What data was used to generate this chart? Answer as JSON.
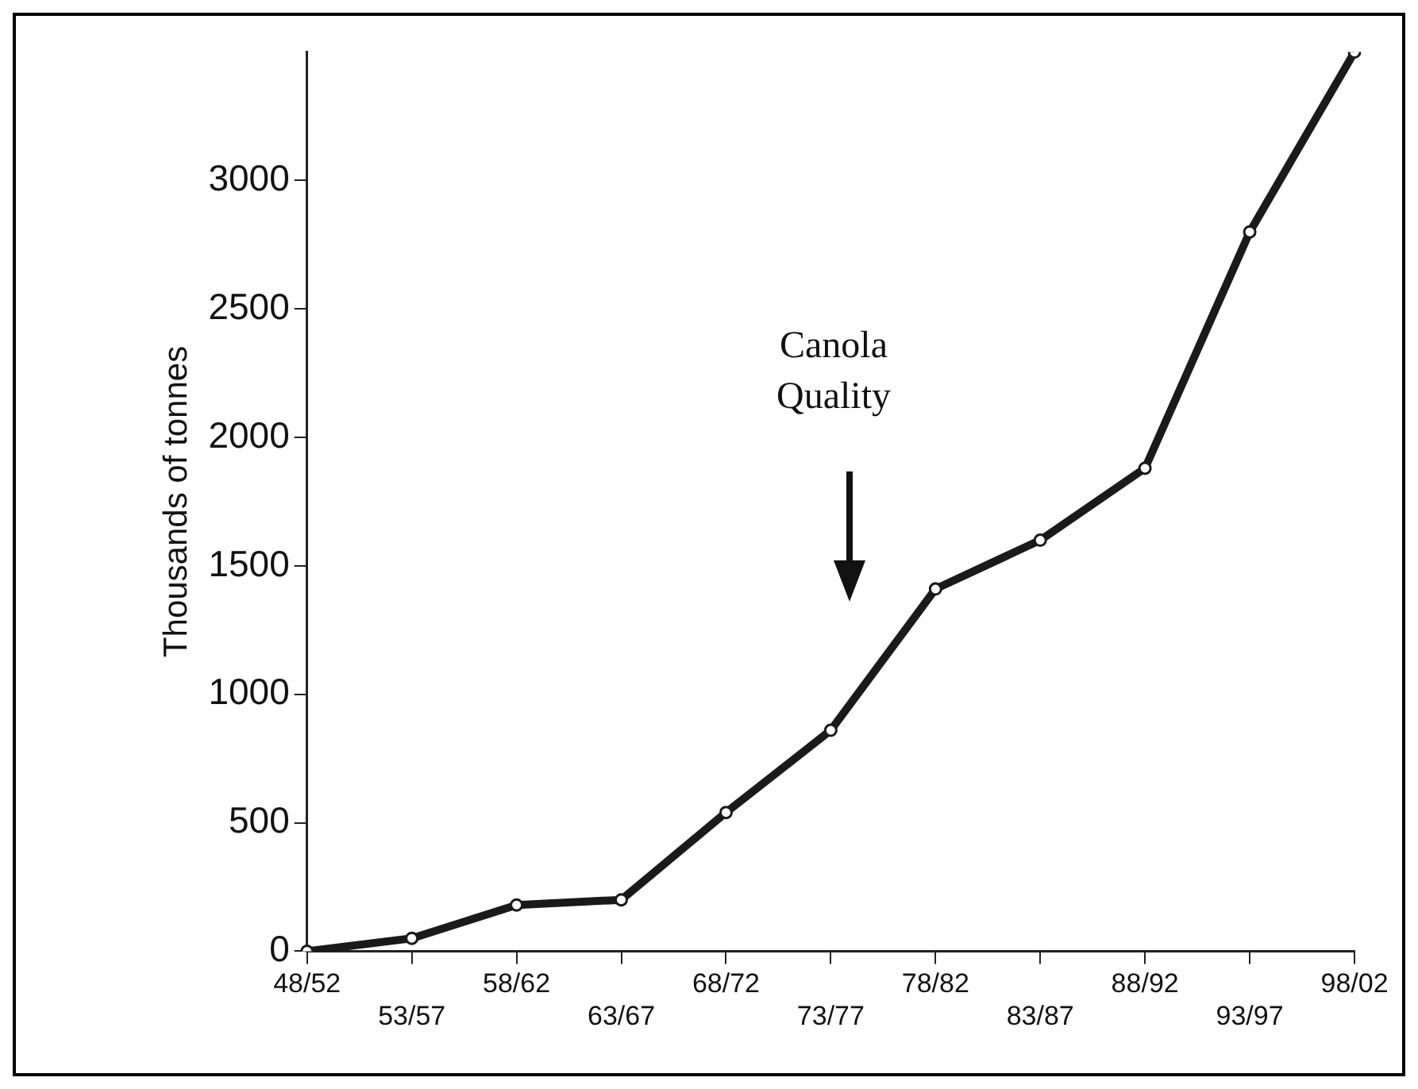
{
  "chart_data": {
    "type": "line",
    "ylabel": "Thousands of tonnes",
    "categories": [
      "48/52",
      "53/57",
      "58/62",
      "63/67",
      "68/72",
      "73/77",
      "78/82",
      "83/87",
      "88/92",
      "93/97",
      "98/02"
    ],
    "series": [
      {
        "color": "#1a1a1a",
        "values": [
          0,
          50,
          180,
          200,
          540,
          860,
          1410,
          1600,
          1880,
          2800,
          3500
        ]
      }
    ],
    "ylim": [
      0,
      3500
    ],
    "yticks": [
      0,
      500,
      1000,
      1500,
      2000,
      2500,
      3000
    ],
    "grid": false,
    "legend": false,
    "marker": "circle",
    "line_style": "solid",
    "annotations": [
      "Canola Quality"
    ]
  }
}
